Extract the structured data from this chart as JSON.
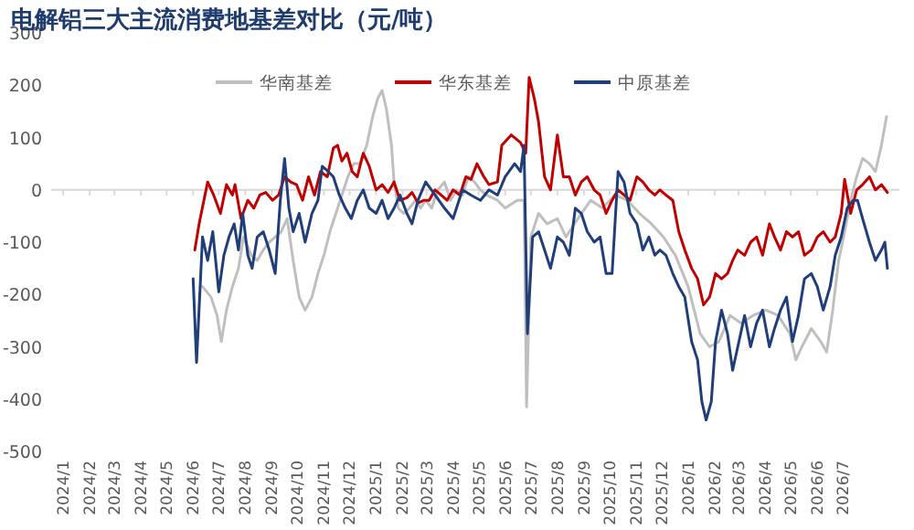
{
  "chart_data": {
    "type": "line",
    "title": "电解铝三大主流消费地基差对比（元/吨）",
    "xlim": [
      "2023-12-18",
      "2026-09-05"
    ],
    "xticks": [
      {
        "value": "2024-01-01",
        "label": "2024/1"
      },
      {
        "value": "2024-02-01",
        "label": "2024/2"
      },
      {
        "value": "2024-03-01",
        "label": "2024/3"
      },
      {
        "value": "2024-04-01",
        "label": "2024/4"
      },
      {
        "value": "2024-05-01",
        "label": "2024/5"
      },
      {
        "value": "2024-06-01",
        "label": "2024/6"
      },
      {
        "value": "2024-07-01",
        "label": "2024/7"
      },
      {
        "value": "2024-08-01",
        "label": "2024/8"
      },
      {
        "value": "2024-09-01",
        "label": "2024/9"
      },
      {
        "value": "2024-10-01",
        "label": "2024/10"
      },
      {
        "value": "2024-11-01",
        "label": "2024/11"
      },
      {
        "value": "2024-12-01",
        "label": "2024/12"
      },
      {
        "value": "2025-01-01",
        "label": "2025/1"
      },
      {
        "value": "2025-02-01",
        "label": "2025/2"
      },
      {
        "value": "2025-03-01",
        "label": "2025/3"
      },
      {
        "value": "2025-04-01",
        "label": "2025/4"
      },
      {
        "value": "2025-05-01",
        "label": "2025/5"
      },
      {
        "value": "2025-06-01",
        "label": "2025/6"
      },
      {
        "value": "2025-07-01",
        "label": "2025/7"
      },
      {
        "value": "2025-08-01",
        "label": "2025/8"
      },
      {
        "value": "2025-09-01",
        "label": "2025/9"
      },
      {
        "value": "2025-10-01",
        "label": "2025/10"
      },
      {
        "value": "2025-11-01",
        "label": "2025/11"
      },
      {
        "value": "2025-12-01",
        "label": "2025/12"
      },
      {
        "value": "2026-01-01",
        "label": "2026/1"
      },
      {
        "value": "2026-02-01",
        "label": "2026/2"
      },
      {
        "value": "2026-03-01",
        "label": "2026/3"
      },
      {
        "value": "2026-04-01",
        "label": "2026/4"
      },
      {
        "value": "2026-05-01",
        "label": "2026/5"
      },
      {
        "value": "2026-06-01",
        "label": "2026/6"
      },
      {
        "value": "2026-07-01",
        "label": "2026/7"
      }
    ],
    "ylim": [
      -500,
      300
    ],
    "yticks": [
      -500,
      -400,
      -300,
      -200,
      -100,
      0,
      100,
      200,
      300
    ],
    "ref_lines": [
      {
        "axis": "y",
        "value": 0,
        "color": "#d9d9d9"
      }
    ],
    "legend": "top",
    "grid": false,
    "series": [
      {
        "name": "华南基差",
        "color": "#bfbfbf",
        "x": [
          "2024-06-12",
          "2024-06-22",
          "2024-06-29",
          "2024-07-04",
          "2024-07-10",
          "2024-07-17",
          "2024-07-24",
          "2024-07-30",
          "2024-08-08",
          "2024-08-15",
          "2024-08-22",
          "2024-08-29",
          "2024-09-05",
          "2024-09-12",
          "2024-09-19",
          "2024-09-26",
          "2024-10-03",
          "2024-10-10",
          "2024-10-18",
          "2024-10-25",
          "2024-11-01",
          "2024-11-08",
          "2024-11-15",
          "2024-11-22",
          "2024-11-29",
          "2024-12-06",
          "2024-12-13",
          "2024-12-21",
          "2024-12-28",
          "2025-01-03",
          "2025-01-08",
          "2025-01-13",
          "2025-01-19",
          "2025-01-22",
          "2025-01-27",
          "2025-02-02",
          "2025-02-09",
          "2025-02-16",
          "2025-02-22",
          "2025-02-28",
          "2025-03-07",
          "2025-03-14",
          "2025-03-22",
          "2025-03-29",
          "2025-04-05",
          "2025-04-12",
          "2025-04-19",
          "2025-04-26",
          "2025-05-03",
          "2025-05-10",
          "2025-05-23",
          "2025-06-01",
          "2025-06-15",
          "2025-06-23",
          "2025-06-26",
          "2025-07-01",
          "2025-07-10",
          "2025-07-20",
          "2025-08-01",
          "2025-08-11",
          "2025-08-25",
          "2025-09-09",
          "2025-09-23",
          "2025-10-07",
          "2025-10-22",
          "2025-11-05",
          "2025-11-19",
          "2025-12-03",
          "2025-12-17",
          "2026-01-01",
          "2026-01-15",
          "2026-01-26",
          "2026-02-06",
          "2026-02-19",
          "2026-03-04",
          "2026-03-18",
          "2026-04-02",
          "2026-04-16",
          "2026-04-30",
          "2026-05-07",
          "2026-05-14",
          "2026-05-25",
          "2026-06-05",
          "2026-06-12",
          "2026-06-19",
          "2026-06-26",
          "2026-07-03",
          "2026-07-10",
          "2026-07-17",
          "2026-07-24",
          "2026-08-01",
          "2026-08-08",
          "2026-08-15",
          "2026-08-21"
        ],
        "values": [
          -185,
          -205,
          -240,
          -290,
          -230,
          -185,
          -150,
          -90,
          -125,
          -135,
          -115,
          -100,
          -90,
          -80,
          -55,
          -135,
          -205,
          -230,
          -205,
          -160,
          -125,
          -80,
          -45,
          -10,
          25,
          50,
          50,
          85,
          140,
          175,
          190,
          155,
          85,
          15,
          -35,
          -45,
          -35,
          -20,
          -35,
          -20,
          -35,
          0,
          15,
          -20,
          0,
          -10,
          25,
          15,
          0,
          -10,
          -20,
          -35,
          -20,
          -20,
          -415,
          -90,
          -45,
          -65,
          -55,
          -90,
          -55,
          -20,
          -35,
          -10,
          -20,
          -45,
          -65,
          -90,
          -125,
          -185,
          -275,
          -300,
          -290,
          -240,
          -255,
          -240,
          -230,
          -240,
          -275,
          -325,
          -300,
          -265,
          -290,
          -310,
          -230,
          -135,
          -80,
          -20,
          25,
          60,
          50,
          35,
          85,
          140
        ]
      },
      {
        "name": "华东基差",
        "color": "#c00000",
        "x": [
          "2024-06-03",
          "2024-06-08",
          "2024-06-18",
          "2024-06-25",
          "2024-07-03",
          "2024-07-10",
          "2024-07-17",
          "2024-07-20",
          "2024-07-27",
          "2024-08-04",
          "2024-08-11",
          "2024-08-18",
          "2024-08-25",
          "2024-09-02",
          "2024-09-09",
          "2024-09-16",
          "2024-09-23",
          "2024-09-30",
          "2024-10-07",
          "2024-10-14",
          "2024-10-21",
          "2024-10-28",
          "2024-11-05",
          "2024-11-12",
          "2024-11-17",
          "2024-11-22",
          "2024-11-28",
          "2024-12-04",
          "2024-12-10",
          "2024-12-17",
          "2024-12-24",
          "2025-01-01",
          "2025-01-08",
          "2025-01-15",
          "2025-01-22",
          "2025-01-29",
          "2025-02-06",
          "2025-02-12",
          "2025-02-19",
          "2025-02-26",
          "2025-03-04",
          "2025-03-11",
          "2025-03-18",
          "2025-03-25",
          "2025-04-01",
          "2025-04-09",
          "2025-04-16",
          "2025-04-22",
          "2025-04-29",
          "2025-05-07",
          "2025-05-13",
          "2025-05-23",
          "2025-05-28",
          "2025-06-08",
          "2025-06-19",
          "2025-06-25",
          "2025-06-29",
          "2025-07-05",
          "2025-07-10",
          "2025-07-17",
          "2025-07-24",
          "2025-08-01",
          "2025-08-08",
          "2025-08-15",
          "2025-08-22",
          "2025-08-29",
          "2025-09-05",
          "2025-09-13",
          "2025-09-20",
          "2025-09-27",
          "2025-10-04",
          "2025-10-11",
          "2025-10-18",
          "2025-10-25",
          "2025-11-02",
          "2025-11-09",
          "2025-11-16",
          "2025-11-23",
          "2025-11-29",
          "2025-12-06",
          "2025-12-14",
          "2025-12-21",
          "2025-12-28",
          "2026-01-05",
          "2026-01-12",
          "2026-01-19",
          "2026-01-26",
          "2026-02-02",
          "2026-02-09",
          "2026-02-16",
          "2026-02-22",
          "2026-02-28",
          "2026-03-08",
          "2026-03-15",
          "2026-03-22",
          "2026-03-29",
          "2026-04-06",
          "2026-04-12",
          "2026-04-19",
          "2026-04-26",
          "2026-05-03",
          "2026-05-10",
          "2026-05-17",
          "2026-05-25",
          "2026-06-01",
          "2026-06-08",
          "2026-06-16",
          "2026-06-22",
          "2026-06-29",
          "2026-07-03",
          "2026-07-10",
          "2026-07-17",
          "2026-07-24",
          "2026-08-01",
          "2026-08-08",
          "2026-08-15",
          "2026-08-22"
        ],
        "values": [
          -115,
          -65,
          15,
          -10,
          -45,
          10,
          -10,
          10,
          -55,
          -20,
          -35,
          -10,
          -5,
          -20,
          -10,
          25,
          15,
          10,
          -20,
          25,
          -10,
          35,
          25,
          80,
          85,
          55,
          70,
          35,
          25,
          70,
          45,
          0,
          10,
          -5,
          15,
          -20,
          -15,
          -5,
          -25,
          -20,
          -20,
          0,
          -10,
          -20,
          0,
          -10,
          25,
          20,
          50,
          25,
          10,
          15,
          85,
          105,
          90,
          70,
          215,
          175,
          130,
          25,
          0,
          105,
          25,
          25,
          -10,
          15,
          25,
          0,
          -10,
          -45,
          -20,
          0,
          -10,
          -20,
          25,
          15,
          0,
          -10,
          0,
          -10,
          -20,
          -80,
          -115,
          -150,
          -170,
          -220,
          -205,
          -160,
          -170,
          -160,
          -135,
          -115,
          -125,
          -100,
          -90,
          -125,
          -65,
          -90,
          -115,
          -80,
          -90,
          -80,
          -125,
          -115,
          -90,
          -80,
          -100,
          -90,
          -45,
          20,
          -45,
          0,
          10,
          25,
          0,
          10,
          -5
        ]
      },
      {
        "name": "中原基差",
        "color": "#203f7a",
        "x": [
          "2024-06-01",
          "2024-06-05",
          "2024-06-12",
          "2024-06-18",
          "2024-06-24",
          "2024-07-01",
          "2024-07-07",
          "2024-07-13",
          "2024-07-19",
          "2024-07-24",
          "2024-07-29",
          "2024-08-04",
          "2024-08-09",
          "2024-08-15",
          "2024-08-22",
          "2024-08-29",
          "2024-09-05",
          "2024-09-11",
          "2024-09-16",
          "2024-09-21",
          "2024-09-26",
          "2024-10-03",
          "2024-10-10",
          "2024-10-18",
          "2024-10-25",
          "2024-10-30",
          "2024-11-06",
          "2024-11-12",
          "2024-11-19",
          "2024-11-26",
          "2024-12-03",
          "2024-12-10",
          "2024-12-17",
          "2024-12-24",
          "2025-01-01",
          "2025-01-08",
          "2025-01-15",
          "2025-01-22",
          "2025-01-29",
          "2025-02-06",
          "2025-02-12",
          "2025-02-19",
          "2025-02-28",
          "2025-03-11",
          "2025-03-22",
          "2025-04-01",
          "2025-04-12",
          "2025-04-22",
          "2025-05-03",
          "2025-05-13",
          "2025-05-23",
          "2025-06-01",
          "2025-06-12",
          "2025-06-19",
          "2025-06-23",
          "2025-06-27",
          "2025-07-03",
          "2025-07-10",
          "2025-07-17",
          "2025-07-24",
          "2025-08-01",
          "2025-08-08",
          "2025-08-15",
          "2025-08-22",
          "2025-08-29",
          "2025-09-05",
          "2025-09-13",
          "2025-09-20",
          "2025-09-27",
          "2025-10-04",
          "2025-10-11",
          "2025-10-18",
          "2025-10-25",
          "2025-11-02",
          "2025-11-09",
          "2025-11-16",
          "2025-11-23",
          "2025-11-29",
          "2025-12-06",
          "2025-12-14",
          "2025-12-21",
          "2025-12-28",
          "2026-01-05",
          "2026-01-12",
          "2026-01-17",
          "2026-01-22",
          "2026-01-28",
          "2026-02-02",
          "2026-02-09",
          "2026-02-16",
          "2026-02-22",
          "2026-02-28",
          "2026-03-08",
          "2026-03-15",
          "2026-03-22",
          "2026-03-29",
          "2026-04-06",
          "2026-04-12",
          "2026-04-19",
          "2026-04-26",
          "2026-05-03",
          "2026-05-10",
          "2026-05-17",
          "2026-05-25",
          "2026-06-01",
          "2026-06-08",
          "2026-06-16",
          "2026-06-22",
          "2026-06-29",
          "2026-07-06",
          "2026-07-13",
          "2026-07-18",
          "2026-07-24",
          "2026-08-01",
          "2026-08-08",
          "2026-08-15",
          "2026-08-19",
          "2026-08-22"
        ],
        "values": [
          -170,
          -330,
          -90,
          -135,
          -80,
          -195,
          -125,
          -90,
          -65,
          -115,
          -45,
          -125,
          -150,
          -90,
          -80,
          -115,
          -160,
          -20,
          60,
          -35,
          -80,
          -45,
          -100,
          -45,
          -20,
          45,
          35,
          25,
          -10,
          -35,
          -55,
          -20,
          0,
          -35,
          -45,
          -20,
          -55,
          -35,
          -10,
          -45,
          -65,
          -20,
          15,
          -10,
          -35,
          -55,
          0,
          -10,
          -20,
          0,
          -10,
          25,
          50,
          35,
          85,
          -275,
          -90,
          -80,
          -115,
          -150,
          -90,
          -100,
          -125,
          -35,
          -45,
          -80,
          -100,
          -90,
          -160,
          -160,
          35,
          15,
          -45,
          -65,
          -115,
          -90,
          -125,
          -115,
          -125,
          -160,
          -185,
          -205,
          -290,
          -325,
          -405,
          -440,
          -405,
          -290,
          -230,
          -275,
          -345,
          -300,
          -240,
          -300,
          -255,
          -230,
          -300,
          -265,
          -230,
          -205,
          -290,
          -240,
          -170,
          -160,
          -185,
          -230,
          -185,
          -125,
          -90,
          -35,
          -20,
          -20,
          -55,
          -100,
          -135,
          -115,
          -100,
          -150
        ]
      }
    ]
  }
}
